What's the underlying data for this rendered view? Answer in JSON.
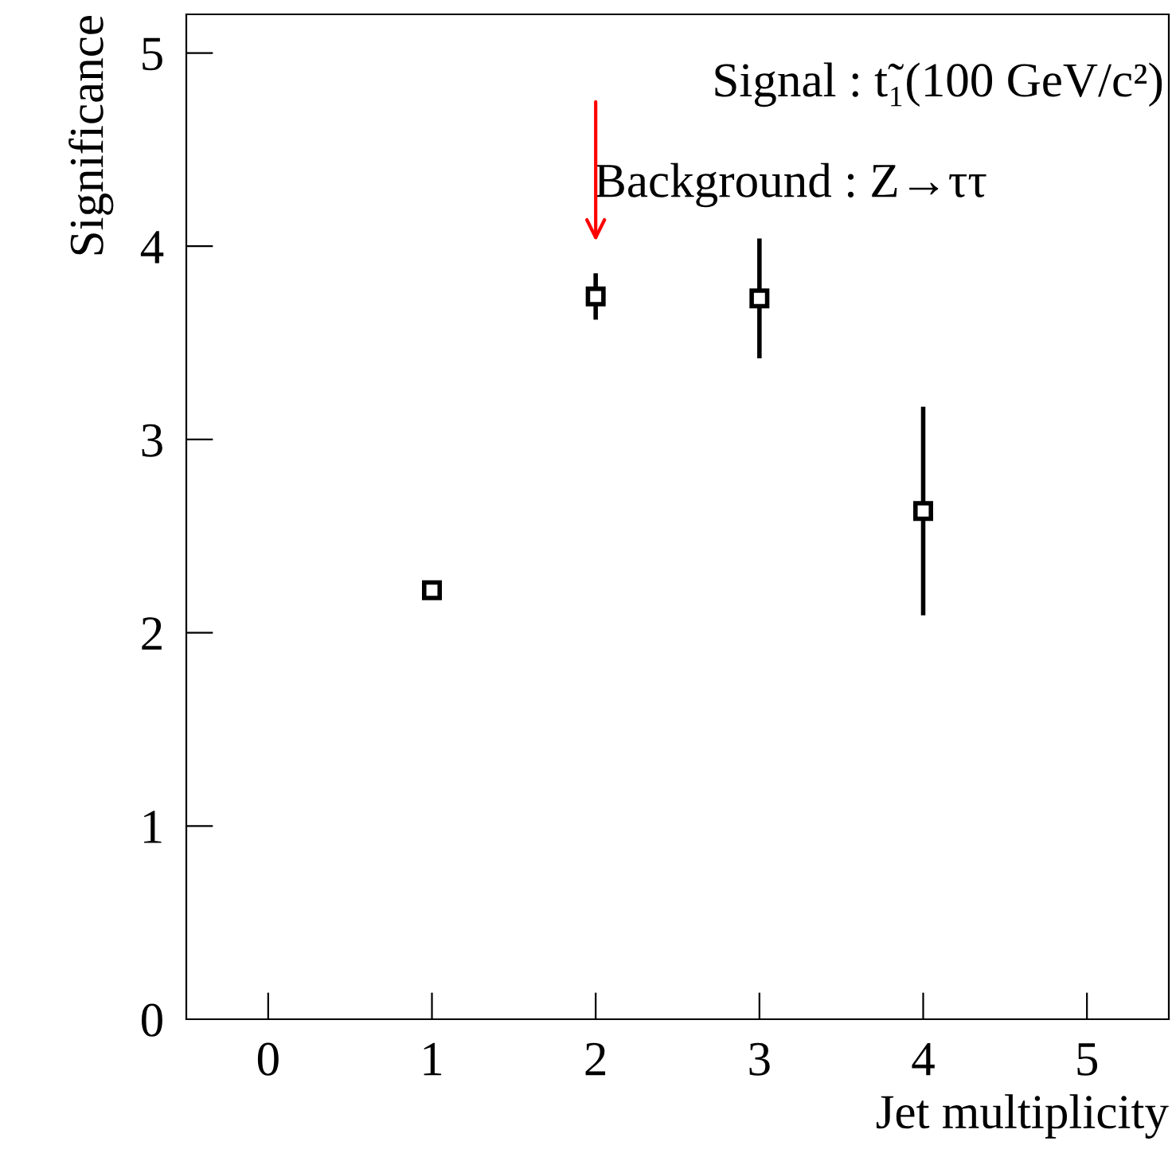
{
  "chart_data": {
    "type": "scatter",
    "xlabel": "Jet multiplicity",
    "ylabel": "Significance",
    "x": [
      1,
      2,
      3,
      4
    ],
    "values": [
      2.22,
      3.74,
      3.73,
      2.63
    ],
    "errors": [
      null,
      0.12,
      0.31,
      0.54
    ],
    "color": "#000000",
    "marker": "square",
    "xlim": [
      -0.5,
      5.5
    ],
    "xticks": [
      0,
      1,
      2,
      3,
      4,
      5
    ],
    "ylim": [
      0,
      5.2
    ],
    "yticks": [
      0,
      1,
      2,
      3,
      4,
      5
    ],
    "grid": false,
    "legend": false,
    "annotations": [
      "Signal : t̃₁(100 GeV/c²)",
      "Background : Z→ττ"
    ]
  }
}
